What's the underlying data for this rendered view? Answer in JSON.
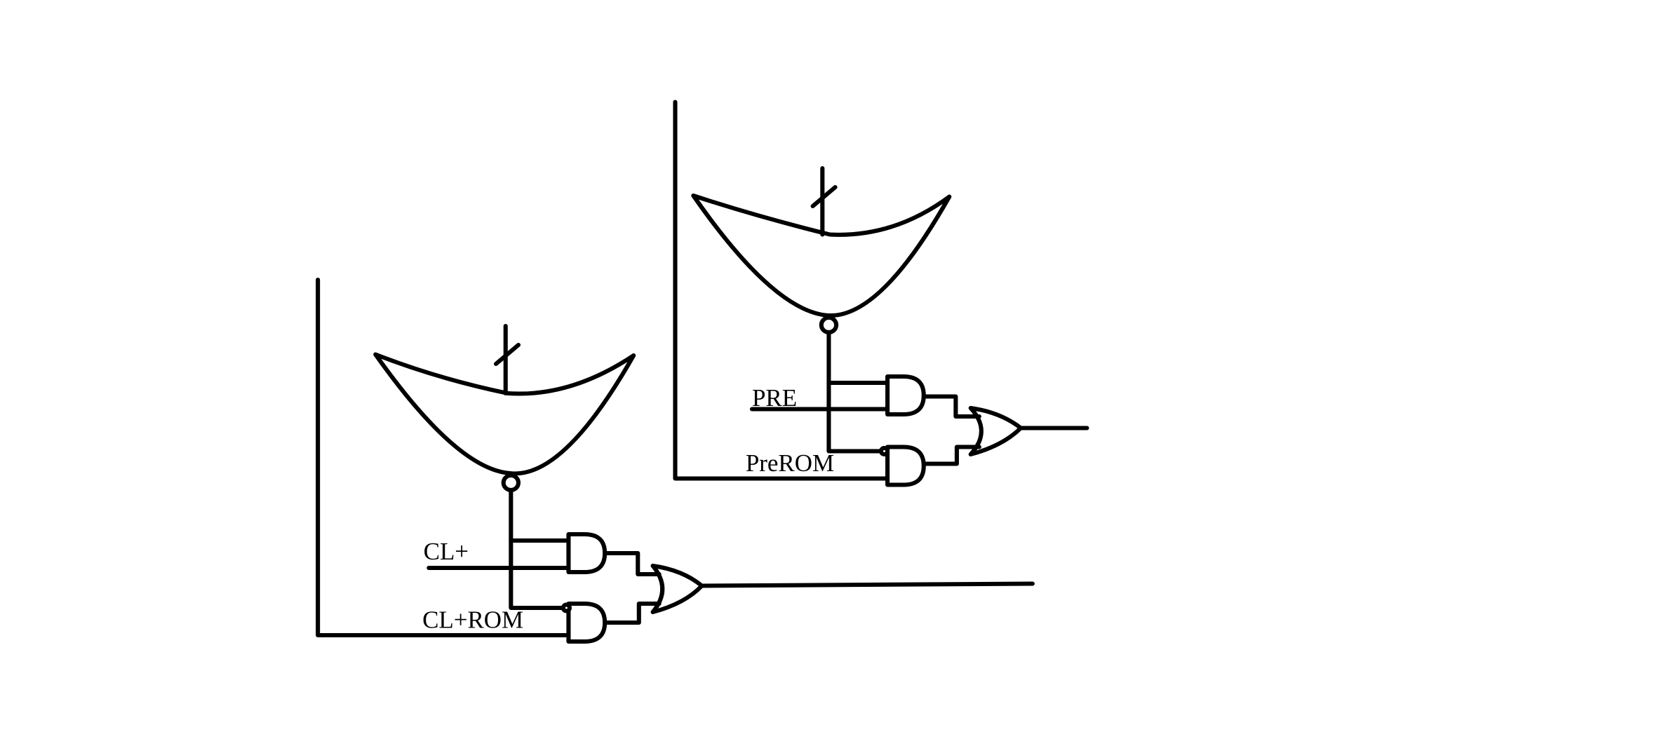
{
  "diagram": {
    "colors": {
      "stroke": "#000000",
      "background": "#ffffff"
    },
    "circuits": [
      {
        "id": "lower",
        "labels": {
          "signal": "CL+",
          "rom": "CL+ROM"
        }
      },
      {
        "id": "upper",
        "labels": {
          "signal": "PRE",
          "rom": "PreROM"
        }
      }
    ]
  }
}
